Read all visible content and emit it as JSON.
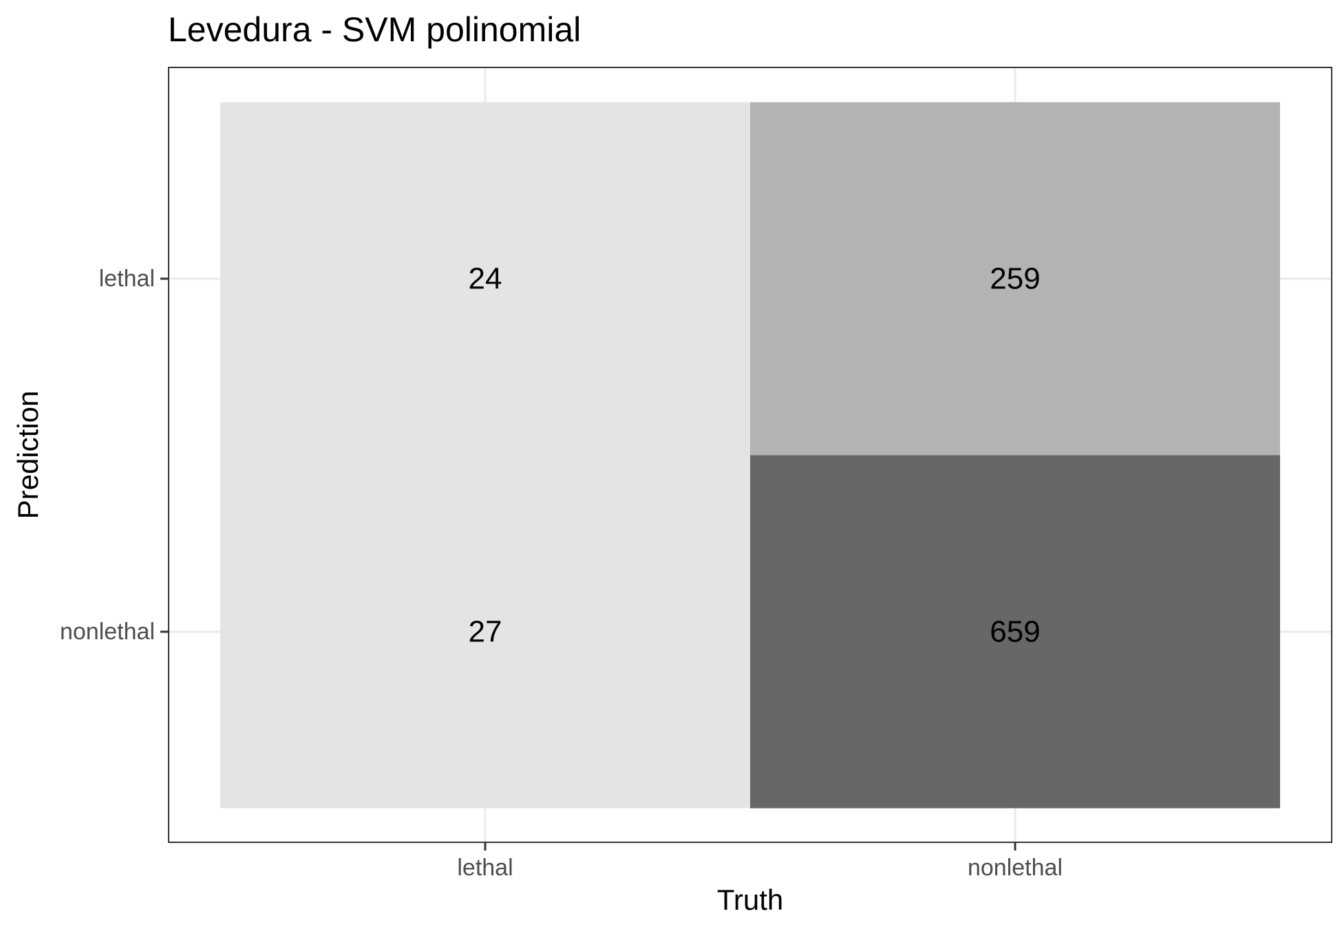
{
  "chart_data": {
    "type": "heatmap",
    "title": "Levedura - SVM polinomial",
    "xlabel": "Truth",
    "ylabel": "Prediction",
    "x_categories": [
      "lethal",
      "nonlethal"
    ],
    "y_categories": [
      "lethal",
      "nonlethal"
    ],
    "cells": [
      {
        "truth": "lethal",
        "prediction": "lethal",
        "value": 24,
        "color": "#e4e4e4"
      },
      {
        "truth": "nonlethal",
        "prediction": "lethal",
        "value": 259,
        "color": "#b3b3b3"
      },
      {
        "truth": "lethal",
        "prediction": "nonlethal",
        "value": 27,
        "color": "#e4e4e4"
      },
      {
        "truth": "nonlethal",
        "prediction": "nonlethal",
        "value": 659,
        "color": "#676767"
      }
    ],
    "grid": true,
    "legend": "none"
  }
}
